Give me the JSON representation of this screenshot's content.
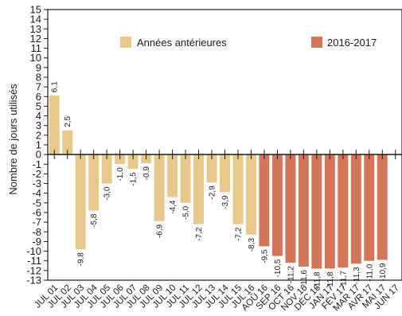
{
  "chart_data": {
    "type": "bar",
    "ylabel": "Nombre de jours utilisés",
    "xlabel": "",
    "ylim": [
      -13,
      15
    ],
    "yticks": [
      15,
      14,
      13,
      12,
      11,
      10,
      9,
      8,
      7,
      6,
      5,
      4,
      3,
      2,
      1,
      0,
      -1,
      -2,
      -3,
      -4,
      -5,
      -6,
      -7,
      -8,
      -9,
      -10,
      -11,
      -12,
      -13
    ],
    "legend": [
      {
        "label": "Années antérieures",
        "color": "#e8c98c"
      },
      {
        "label": "2016-2017",
        "color": "#d4765a"
      }
    ],
    "categories": [
      "JUL 01",
      "JUL 02",
      "JUL 03",
      "JUL 04",
      "JUL 05",
      "JUL 06",
      "JUL 07",
      "JUL 08",
      "JUL 09",
      "JUL 10",
      "JUL 11",
      "JUL 12",
      "JUL 13",
      "JUL 14",
      "JUL 15",
      "JUL 16",
      "AOÛ 16",
      "SEP 16",
      "OCT 16",
      "NOV 16",
      "DÉC 16",
      "JAN 17",
      "FÉV 17",
      "MAR 17",
      "AVR 17",
      "MAI 17",
      "JUN 17"
    ],
    "values": [
      6.1,
      2.5,
      -9.8,
      -5.8,
      -3.0,
      -1.0,
      -1.5,
      -0.9,
      -6.9,
      -4.4,
      -5.0,
      -7.2,
      -2.9,
      -3.9,
      -7.2,
      -8.3,
      -9.5,
      -10.5,
      -11.2,
      -11.6,
      -11.8,
      -11.8,
      -11.7,
      -11.3,
      -11.0,
      -10.9,
      null
    ],
    "value_labels": [
      "6,1",
      "2,5",
      "-9,8",
      "-5,8",
      "-3,0",
      "-1,0",
      "-1,5",
      "-0,9",
      "-6,9",
      "-4,4",
      "-5,0",
      "-7,2",
      "-2,9",
      "-3,9",
      "-7,2",
      "-8,3",
      "-9,5",
      "-10,5",
      "-11,2",
      "-11,6",
      "-11,8",
      "-11,8",
      "-11,7",
      "-11,3",
      "-11,0",
      "-10,9",
      ""
    ],
    "series_group": [
      "prior",
      "prior",
      "prior",
      "prior",
      "prior",
      "prior",
      "prior",
      "prior",
      "prior",
      "prior",
      "prior",
      "prior",
      "prior",
      "prior",
      "prior",
      "prior",
      "current",
      "current",
      "current",
      "current",
      "current",
      "current",
      "current",
      "current",
      "current",
      "current",
      "current"
    ],
    "grid": false,
    "legend_position": "top"
  }
}
